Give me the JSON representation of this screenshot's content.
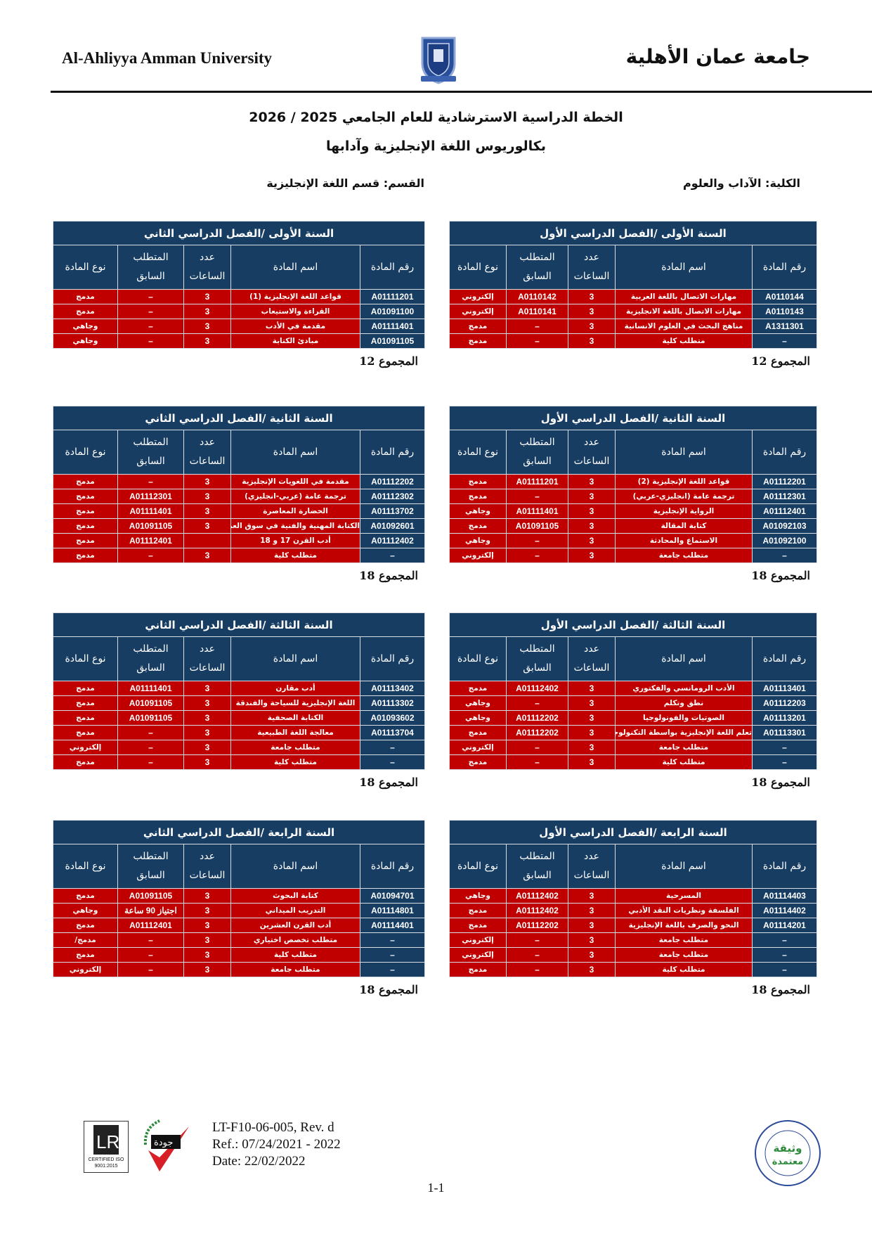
{
  "header": {
    "university_en": "Al-Ahliyya Amman University",
    "university_ar": "جامعة عمان الأهلية",
    "title_line1": "الخطة الدراسية الاسترشادية للعام الجامعي 2025 / 2026",
    "title_line2": "بكالوريوس اللغة الإنجليزية وآدابها",
    "faculty": "الكلية: الآداب والعلوم",
    "department": "القسم: قسم اللغة الإنجليزية"
  },
  "columns": {
    "code": "رقم المادة",
    "name": "اسم المادة",
    "hours": "عدد الساعات",
    "prereq": "المتطلب السابق",
    "type": "نوع المادة"
  },
  "colors": {
    "navy": "#173d63",
    "red": "#c00000"
  },
  "plans": [
    {
      "title": "السنة الأولى /الفصل الدراسي الأول",
      "total": "المجموع 12",
      "rows": [
        [
          "A0110144",
          "مهارات الاتصال باللغة العربية",
          "3",
          "A0110142",
          "إلكتروني"
        ],
        [
          "A0110143",
          "مهارات الاتصال باللغة الانجليزية",
          "3",
          "A0110141",
          "إلكتروني"
        ],
        [
          "A1311301",
          "مناهج البحث في العلوم الانسانية",
          "3",
          "–",
          "مدمج"
        ],
        [
          "–",
          "متطلب كلية",
          "3",
          "–",
          "مدمج"
        ]
      ]
    },
    {
      "title": "السنة الأولى /الفصل الدراسي الثاني",
      "total": "المجموع 12",
      "rows": [
        [
          "A01111201",
          "قواعد اللغة الإنجليزية (1)",
          "3",
          "–",
          "مدمج"
        ],
        [
          "A01091100",
          "القراءة والاستيعاب",
          "3",
          "–",
          "مدمج"
        ],
        [
          "A01111401",
          "مقدمة في الأدب",
          "3",
          "–",
          "وجاهي"
        ],
        [
          "A01091105",
          "مبادئ الكتابة",
          "3",
          "–",
          "وجاهي"
        ]
      ]
    },
    {
      "title": "السنة الثانية /الفصل الدراسي الأول",
      "total": "المجموع 18",
      "rows": [
        [
          "A01112201",
          "قواعد اللغة الإنجليزية (2)",
          "3",
          "A01111201",
          "مدمج"
        ],
        [
          "A01112301",
          "ترجمة عامة (انجليزي-عربي)",
          "3",
          "–",
          "مدمج"
        ],
        [
          "A01112401",
          "الرواية الإنجليزية",
          "3",
          "A01111401",
          "وجاهي"
        ],
        [
          "A01092103",
          "كتابة المقالة",
          "3",
          "A01091105",
          "مدمج"
        ],
        [
          "A01092100",
          "الاستماع والمحادثة",
          "3",
          "–",
          "وجاهي"
        ],
        [
          "–",
          "متطلب جامعة",
          "3",
          "–",
          "إلكتروني"
        ]
      ]
    },
    {
      "title": "السنة الثانية /الفصل الدراسي الثاني",
      "total": "المجموع 18",
      "rows": [
        [
          "A01112202",
          "مقدمة في اللغويات الإنجليزية",
          "3",
          "–",
          "مدمج"
        ],
        [
          "A01112302",
          "ترجمة عامة (عربي-انجليزي)",
          "3",
          "A01112301",
          "مدمج"
        ],
        [
          "A01113702",
          "الحضارة المعاصرة",
          "3",
          "A01111401",
          "مدمج"
        ],
        [
          "A01092601",
          "الكتابة المهنية والفنية في سوق العمل",
          "3",
          "A01091105",
          "مدمج"
        ],
        [
          "A01112402",
          "أدب القرن 17 و 18",
          "",
          "A01112401",
          "مدمج"
        ],
        [
          "–",
          "متطلب كلية",
          "3",
          "–",
          "مدمج"
        ]
      ]
    },
    {
      "title": "السنة الثالثة /الفصل الدراسي الأول",
      "total": "المجموع 18",
      "rows": [
        [
          "A01113401",
          "الأدب الرومانسي والفكتوري",
          "3",
          "A01112402",
          "مدمج"
        ],
        [
          "A01112203",
          "نطق وتكلم",
          "3",
          "–",
          "وجاهي"
        ],
        [
          "A01113201",
          "الصوتيات والفونولوجيا",
          "3",
          "A01112202",
          "وجاهي"
        ],
        [
          "A01113301",
          "تعلم اللغة الإنجليزية بواسطة التكنولوجيا",
          "3",
          "A01112202",
          "مدمج"
        ],
        [
          "–",
          "متطلب جامعة",
          "3",
          "–",
          "إلكتروني"
        ],
        [
          "–",
          "متطلب كلية",
          "3",
          "–",
          "مدمج"
        ]
      ]
    },
    {
      "title": "السنة الثالثة /الفصل الدراسي الثاني",
      "total": "المجموع 18",
      "rows": [
        [
          "A01113402",
          "أدب مقارن",
          "3",
          "A01111401",
          "مدمج"
        ],
        [
          "A01113302",
          "اللغة الإنجليزية للسياحة والفندقة",
          "3",
          "A01091105",
          "مدمج"
        ],
        [
          "A01093602",
          "الكتابة الصحفية",
          "3",
          "A01091105",
          "مدمج"
        ],
        [
          "A01113704",
          "معالجة اللغة الطبيعية",
          "3",
          "–",
          "مدمج"
        ],
        [
          "–",
          "متطلب جامعة",
          "3",
          "–",
          "إلكتروني"
        ],
        [
          "–",
          "متطلب كلية",
          "3",
          "–",
          "مدمج"
        ]
      ]
    },
    {
      "title": "السنة الرابعة /الفصل الدراسي الأول",
      "total": "المجموع 18",
      "rows": [
        [
          "A01114403",
          "المسرحية",
          "3",
          "A01112402",
          "وجاهي"
        ],
        [
          "A01114402",
          "الفلسفة ونظريات النقد الأدبي",
          "3",
          "A01112402",
          "مدمج"
        ],
        [
          "A01114201",
          "النحو والصرف باللغة الإنجليزية",
          "3",
          "A01112202",
          "مدمج"
        ],
        [
          "–",
          "متطلب جامعة",
          "3",
          "–",
          "إلكتروني"
        ],
        [
          "–",
          "متطلب جامعة",
          "3",
          "–",
          "إلكتروني"
        ],
        [
          "–",
          "متطلب كلية",
          "3",
          "–",
          "مدمج"
        ]
      ]
    },
    {
      "title": "السنة الرابعة /الفصل الدراسي الثاني",
      "total": "المجموع 18",
      "rows": [
        [
          "A01094701",
          "كتابة البحوث",
          "3",
          "A01091105",
          "مدمج"
        ],
        [
          "A01114801",
          "التدريب الميداني",
          "3",
          "اجتياز 90 ساعة",
          "وجاهي"
        ],
        [
          "A01114401",
          "أدب القرن العشرين",
          "3",
          "A01112401",
          "مدمج"
        ],
        [
          "–",
          "متطلب تخصص اختياري",
          "3",
          "–",
          "مدمج/"
        ],
        [
          "–",
          "متطلب كلية",
          "3",
          "–",
          "مدمج"
        ],
        [
          "–",
          "متطلب جامعة",
          "3",
          "–",
          "إلكتروني"
        ]
      ]
    }
  ],
  "footer": {
    "form_code": "LT-F10-06-005, Rev. d",
    "ref": "Ref.: 07/24/2021 - 2022",
    "date": "Date: 22/02/2022",
    "page": "1-1",
    "lr_cert": "CERTIFIED ISO 9001:2015",
    "jawda_logo": "ضمان جودة",
    "seal": "جامعة عمان الأهلية وثيقة معتمدة Al-Ahliyya Amman University"
  }
}
